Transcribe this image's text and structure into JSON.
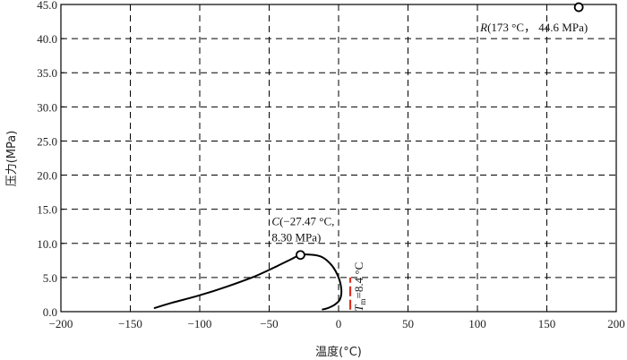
{
  "chart_data": {
    "type": "line",
    "title": "",
    "xlabel": "温度(°C)",
    "ylabel": "压力(MPa)",
    "xlim": [
      -200,
      200
    ],
    "ylim": [
      0,
      45
    ],
    "x_ticks": [
      -200,
      -150,
      -100,
      -50,
      0,
      50,
      100,
      150,
      200
    ],
    "y_ticks": [
      0,
      5,
      10,
      15,
      20,
      25,
      30,
      35,
      40,
      45
    ],
    "x_tick_labels": [
      "−200",
      "−150",
      "−100",
      "−50",
      "0",
      "50",
      "100",
      "150",
      "200"
    ],
    "y_tick_labels": [
      "0.0",
      "5.0",
      "10.0",
      "15.0",
      "20.0",
      "25.0",
      "30.0",
      "35.0",
      "40.0",
      "45.0"
    ],
    "grid": "dashed",
    "series": [
      {
        "x": [
          -133,
          -120,
          -100,
          -80,
          -60,
          -45,
          -35,
          -27.47,
          -20,
          -12,
          -5,
          0,
          2,
          1,
          -3,
          -8,
          -12
        ],
        "y": [
          0.5,
          1.3,
          2.4,
          3.7,
          5.2,
          6.6,
          7.6,
          8.3,
          8.35,
          8.0,
          6.8,
          5.0,
          3.2,
          1.8,
          1.0,
          0.5,
          0.3
        ],
        "color": "#000000"
      }
    ],
    "points": [
      {
        "name": "C",
        "x": -27.47,
        "y": 8.3,
        "label_line1": "C(−27.47 °C,",
        "label_line2": "8.30 MPa)"
      },
      {
        "name": "R",
        "x": 173,
        "y": 44.6,
        "label": "R(173 °C， 44.6 MPa)"
      }
    ],
    "marker": {
      "x": 8.4,
      "y_range": [
        0.3,
        5.0
      ],
      "color": "#e03020",
      "label": "Tm=8.4 °C",
      "label_italic": "T",
      "label_sub": "m",
      "label_rest": "=8.4 °C"
    }
  }
}
